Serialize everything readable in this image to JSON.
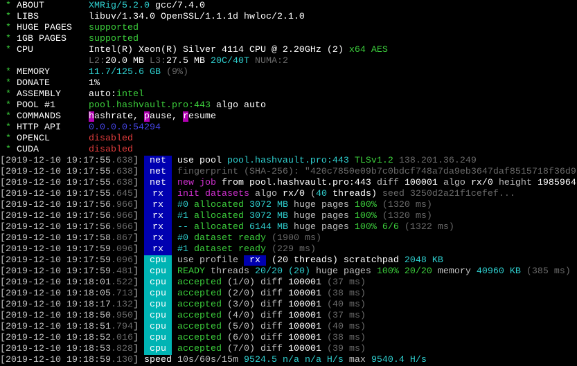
{
  "colors": {
    "net_tag": "#0000b0",
    "rx_tag": "#0000b0",
    "cpu_tag": "#00b4b4",
    "green": "#3ccf3c",
    "cyan": "#2fd0d0",
    "magenta": "#d030d0",
    "red": "#e03c3c",
    "blue": "#4545e8"
  },
  "header": [
    {
      "label": "ABOUT",
      "value": [
        [
          "XMRig/5.2.0",
          "c"
        ],
        [
          " gcc/7.4.0",
          "W"
        ]
      ]
    },
    {
      "label": "LIBS",
      "value": [
        [
          "libuv/1.34.0 OpenSSL/1.1.1d hwloc/2.1.0",
          "W"
        ]
      ]
    },
    {
      "label": "HUGE PAGES",
      "value": [
        [
          "supported",
          "g"
        ]
      ]
    },
    {
      "label": "1GB PAGES",
      "value": [
        [
          "supported",
          "g"
        ]
      ]
    },
    {
      "label": "CPU",
      "value": [
        [
          "Intel(R) Xeon(R) Silver 4114 CPU @ 2.20GHz (2)",
          "W"
        ],
        [
          " x64 AES",
          "g"
        ]
      ]
    },
    {
      "label": "",
      "value": [
        [
          "L2:",
          "d"
        ],
        [
          "20.0 MB ",
          "W"
        ],
        [
          "L3:",
          "d"
        ],
        [
          "27.5 MB ",
          "W"
        ],
        [
          "20C/40T ",
          "c"
        ],
        [
          "NUMA:2",
          "d"
        ]
      ]
    },
    {
      "label": "MEMORY",
      "value": [
        [
          "11.7/125.6 GB ",
          "c"
        ],
        [
          "(9%)",
          "d"
        ]
      ]
    },
    {
      "label": "DONATE",
      "value": [
        [
          "1%",
          "W"
        ]
      ]
    },
    {
      "label": "ASSEMBLY",
      "value": [
        [
          "auto:",
          "W"
        ],
        [
          "intel",
          "g"
        ]
      ]
    },
    {
      "label": "POOL #1",
      "value": [
        [
          "pool.hashvault.pro:443 ",
          "g"
        ],
        [
          "algo auto",
          "W"
        ]
      ]
    },
    {
      "label": "COMMANDS",
      "value": [
        [
          "h",
          "hl"
        ],
        [
          "ashrate, ",
          "W"
        ],
        [
          "p",
          "hl"
        ],
        [
          "ause, ",
          "W"
        ],
        [
          "r",
          "hl"
        ],
        [
          "esume",
          "W"
        ]
      ]
    },
    {
      "label": "HTTP API",
      "value": [
        [
          "0.0.0.0:54294",
          "b"
        ]
      ]
    },
    {
      "label": "OPENCL",
      "value": [
        [
          "disabled",
          "r"
        ]
      ]
    },
    {
      "label": "CUDA",
      "value": [
        [
          "disabled",
          "r"
        ]
      ]
    }
  ],
  "log": [
    {
      "date": "2019-12-10 19:17:55",
      "ms": ".638",
      "tag": "net",
      "msg": [
        [
          "use pool ",
          "W"
        ],
        [
          "pool.hashvault.pro:443 ",
          "c"
        ],
        [
          "TLSv1.2 ",
          "g"
        ],
        [
          "138.201.36.249",
          "d"
        ]
      ]
    },
    {
      "date": "2019-12-10 19:17:55",
      "ms": ".638",
      "tag": "net",
      "msg": [
        [
          "fingerprint (SHA-256): \"420c7850e09b7c0bdcf748a7da9eb3647daf8515718f36d9",
          "d"
        ]
      ]
    },
    {
      "date": "2019-12-10 19:17:55",
      "ms": ".638",
      "tag": "net",
      "msg": [
        [
          "new job",
          "m"
        ],
        [
          " from ",
          "W"
        ],
        [
          "pool.hashvault.pro:443 ",
          "W"
        ],
        [
          "diff ",
          "w"
        ],
        [
          "100001 ",
          "W"
        ],
        [
          "algo ",
          "w"
        ],
        [
          "rx/0 ",
          "W"
        ],
        [
          "height ",
          "w"
        ],
        [
          "1985964",
          "W"
        ]
      ]
    },
    {
      "date": "2019-12-10 19:17:55",
      "ms": ".645",
      "tag": "rx",
      "msg": [
        [
          "init datasets",
          "m"
        ],
        [
          " algo ",
          "w"
        ],
        [
          "rx/0",
          "W"
        ],
        [
          " (",
          "w"
        ],
        [
          "40",
          "c"
        ],
        [
          " threads)",
          "W"
        ],
        [
          " seed 3250d2a21f1cefef...",
          "d"
        ]
      ]
    },
    {
      "date": "2019-12-10 19:17:56",
      "ms": ".966",
      "tag": "rx",
      "msg": [
        [
          "#0",
          "c"
        ],
        [
          " allocated ",
          "g"
        ],
        [
          "3072 MB",
          "c"
        ],
        [
          " huge pages ",
          "w"
        ],
        [
          "100%",
          "g"
        ],
        [
          " (1320 ms)",
          "d"
        ]
      ]
    },
    {
      "date": "2019-12-10 19:17:56",
      "ms": ".966",
      "tag": "rx",
      "msg": [
        [
          "#1",
          "c"
        ],
        [
          " allocated ",
          "g"
        ],
        [
          "3072 MB",
          "c"
        ],
        [
          " huge pages ",
          "w"
        ],
        [
          "100%",
          "g"
        ],
        [
          " (1320 ms)",
          "d"
        ]
      ]
    },
    {
      "date": "2019-12-10 19:17:56",
      "ms": ".966",
      "tag": "rx",
      "msg": [
        [
          "--",
          "c"
        ],
        [
          " allocated ",
          "g"
        ],
        [
          "6144 MB",
          "c"
        ],
        [
          " huge pages ",
          "w"
        ],
        [
          "100% 6/6",
          "g"
        ],
        [
          " (1322 ms)",
          "d"
        ]
      ]
    },
    {
      "date": "2019-12-10 19:17:58",
      "ms": ".867",
      "tag": "rx",
      "msg": [
        [
          "#0",
          "c"
        ],
        [
          " dataset ready ",
          "g"
        ],
        [
          "(1900 ms)",
          "d"
        ]
      ]
    },
    {
      "date": "2019-12-10 19:17:59",
      "ms": ".096",
      "tag": "rx",
      "msg": [
        [
          "#1",
          "c"
        ],
        [
          " dataset ready ",
          "g"
        ],
        [
          "(229 ms)",
          "d"
        ]
      ]
    },
    {
      "date": "2019-12-10 19:17:59",
      "ms": ".096",
      "tag": "cpu",
      "msg": [
        [
          "use profile ",
          "w"
        ],
        [
          " rx ",
          "box"
        ],
        [
          " (20 threads) scratchpad ",
          "W"
        ],
        [
          "2048 KB",
          "c"
        ]
      ]
    },
    {
      "date": "2019-12-10 19:17:59",
      "ms": ".481",
      "tag": "cpu",
      "msg": [
        [
          "READY",
          "g"
        ],
        [
          " threads ",
          "w"
        ],
        [
          "20/20",
          "c"
        ],
        [
          " (20)",
          "c"
        ],
        [
          " huge pages ",
          "w"
        ],
        [
          "100% 20/20",
          "g"
        ],
        [
          " memory ",
          "w"
        ],
        [
          "40960 KB",
          "c"
        ],
        [
          " (385 ms)",
          "d"
        ]
      ]
    },
    {
      "date": "2019-12-10 19:18:01",
      "ms": ".522",
      "tag": "cpu",
      "msg": [
        [
          "accepted",
          "g"
        ],
        [
          " (1/0) diff ",
          "w"
        ],
        [
          "100001",
          "W"
        ],
        [
          " (37 ms)",
          "d"
        ]
      ]
    },
    {
      "date": "2019-12-10 19:18:05",
      "ms": ".713",
      "tag": "cpu",
      "msg": [
        [
          "accepted",
          "g"
        ],
        [
          " (2/0) diff ",
          "w"
        ],
        [
          "100001",
          "W"
        ],
        [
          " (38 ms)",
          "d"
        ]
      ]
    },
    {
      "date": "2019-12-10 19:18:17",
      "ms": ".132",
      "tag": "cpu",
      "msg": [
        [
          "accepted",
          "g"
        ],
        [
          " (3/0) diff ",
          "w"
        ],
        [
          "100001",
          "W"
        ],
        [
          " (40 ms)",
          "d"
        ]
      ]
    },
    {
      "date": "2019-12-10 19:18:50",
      "ms": ".950",
      "tag": "cpu",
      "msg": [
        [
          "accepted",
          "g"
        ],
        [
          " (4/0) diff ",
          "w"
        ],
        [
          "100001",
          "W"
        ],
        [
          " (37 ms)",
          "d"
        ]
      ]
    },
    {
      "date": "2019-12-10 19:18:51",
      "ms": ".794",
      "tag": "cpu",
      "msg": [
        [
          "accepted",
          "g"
        ],
        [
          " (5/0) diff ",
          "w"
        ],
        [
          "100001",
          "W"
        ],
        [
          " (40 ms)",
          "d"
        ]
      ]
    },
    {
      "date": "2019-12-10 19:18:52",
      "ms": ".016",
      "tag": "cpu",
      "msg": [
        [
          "accepted",
          "g"
        ],
        [
          " (6/0) diff ",
          "w"
        ],
        [
          "100001",
          "W"
        ],
        [
          " (38 ms)",
          "d"
        ]
      ]
    },
    {
      "date": "2019-12-10 19:18:53",
      "ms": ".828",
      "tag": "cpu",
      "msg": [
        [
          "accepted",
          "g"
        ],
        [
          " (7/0) diff ",
          "w"
        ],
        [
          "100001",
          "W"
        ],
        [
          " (39 ms)",
          "d"
        ]
      ]
    },
    {
      "date": "2019-12-10 19:18:59",
      "ms": ".130",
      "tag": "speed",
      "msg": [
        [
          "10s/60s/15m ",
          "w"
        ],
        [
          "9524.5",
          "c"
        ],
        [
          " n/a n/a H/s",
          "c"
        ],
        [
          " max ",
          "w"
        ],
        [
          "9540.4 H/s",
          "c"
        ]
      ]
    }
  ]
}
